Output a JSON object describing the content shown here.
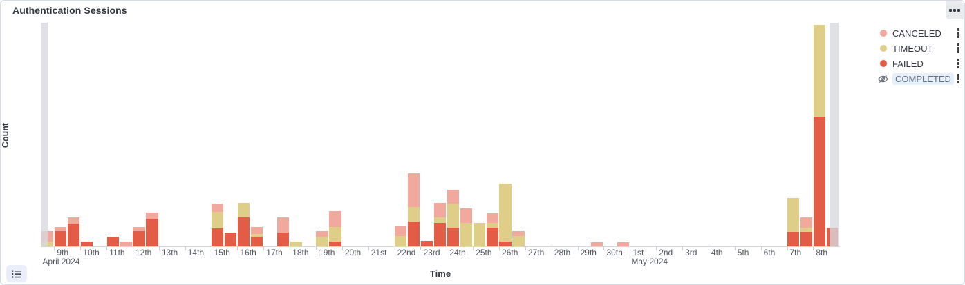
{
  "panel": {
    "title": "Authentication Sessions",
    "options_icon": "boxes-horizontal-icon",
    "legend_toggle_icon": "list-icon"
  },
  "colors": {
    "canceled": "#F0A99C",
    "timeout": "#DECE87",
    "failed": "#E25C46",
    "partial_band": "#E0E0E6",
    "panel_border": "#D3DAE6",
    "hidden_legend_bg": "#E6F0FA",
    "hidden_legend_text": "#647181"
  },
  "legend": {
    "items": [
      {
        "label": "CANCELED",
        "color": "#F0A99C",
        "hidden": false
      },
      {
        "label": "TIMEOUT",
        "color": "#DECE87",
        "hidden": false
      },
      {
        "label": "FAILED",
        "color": "#E25C46",
        "hidden": false
      },
      {
        "label": "COMPLETED",
        "color": null,
        "hidden": true
      }
    ]
  },
  "chart_data": {
    "type": "bar",
    "stacked": true,
    "title": "Authentication Sessions",
    "xlabel": "Time",
    "ylabel": "Count",
    "bucket_interval": "12h",
    "y_axis_note": "no numeric y ticks shown; values are estimated relative counts (pixel-proportional)",
    "series_order_bottom_to_top": [
      "FAILED",
      "TIMEOUT",
      "CANCELED"
    ],
    "hidden_series": [
      "COMPLETED"
    ],
    "x_ticks": [
      "9th",
      "10th",
      "11th",
      "12th",
      "13th",
      "14th",
      "15th",
      "16th",
      "17th",
      "18th",
      "19th",
      "20th",
      "21st",
      "22nd",
      "23rd",
      "24th",
      "25th",
      "26th",
      "27th",
      "28th",
      "29th",
      "30th",
      "1st",
      "2nd",
      "3rd",
      "4th",
      "5th",
      "6th",
      "7th",
      "8th"
    ],
    "month_labels": [
      {
        "tick_index": 0,
        "label": "April 2024"
      },
      {
        "tick_index": 22,
        "label": "May 2024"
      }
    ],
    "partial_buckets": [
      "left edge (Apr 8 PM, half covered)",
      "right edge (May 8 PM)"
    ],
    "bars": [
      {
        "index": 0,
        "time": "Apr 8 PM",
        "failed": 0,
        "timeout": 7,
        "canceled": 15
      },
      {
        "index": 1,
        "time": "Apr 9 AM",
        "failed": 22,
        "timeout": 0,
        "canceled": 6
      },
      {
        "index": 2,
        "time": "Apr 9 PM",
        "failed": 33,
        "timeout": 0,
        "canceled": 9
      },
      {
        "index": 3,
        "time": "Apr 10 AM",
        "failed": 7,
        "timeout": 0,
        "canceled": 0
      },
      {
        "index": 5,
        "time": "Apr 11 AM",
        "failed": 14,
        "timeout": 0,
        "canceled": 0
      },
      {
        "index": 6,
        "time": "Apr 11 PM",
        "failed": 0,
        "timeout": 0,
        "canceled": 7
      },
      {
        "index": 7,
        "time": "Apr 12 AM",
        "failed": 22,
        "timeout": 0,
        "canceled": 6
      },
      {
        "index": 8,
        "time": "Apr 12 PM",
        "failed": 40,
        "timeout": 0,
        "canceled": 9
      },
      {
        "index": 13,
        "time": "Apr 15 AM",
        "failed": 26,
        "timeout": 24,
        "canceled": 12
      },
      {
        "index": 14,
        "time": "Apr 15 PM",
        "failed": 20,
        "timeout": 0,
        "canceled": 0
      },
      {
        "index": 15,
        "time": "Apr 16 AM",
        "failed": 42,
        "timeout": 21,
        "canceled": 0
      },
      {
        "index": 16,
        "time": "Apr 16 PM",
        "failed": 14,
        "timeout": 4,
        "canceled": 10
      },
      {
        "index": 18,
        "time": "Apr 17 PM",
        "failed": 20,
        "timeout": 0,
        "canceled": 22
      },
      {
        "index": 19,
        "time": "Apr 18 AM",
        "failed": 0,
        "timeout": 7,
        "canceled": 0
      },
      {
        "index": 21,
        "time": "Apr 19 AM",
        "failed": 0,
        "timeout": 14,
        "canceled": 8
      },
      {
        "index": 22,
        "time": "Apr 19 PM",
        "failed": 7,
        "timeout": 21,
        "canceled": 23
      },
      {
        "index": 27,
        "time": "Apr 22 AM",
        "failed": 0,
        "timeout": 15,
        "canceled": 14
      },
      {
        "index": 28,
        "time": "Apr 22 PM",
        "failed": 36,
        "timeout": 21,
        "canceled": 49
      },
      {
        "index": 29,
        "time": "Apr 23 AM",
        "failed": 8,
        "timeout": 0,
        "canceled": 0
      },
      {
        "index": 30,
        "time": "Apr 23 PM",
        "failed": 34,
        "timeout": 8,
        "canceled": 21
      },
      {
        "index": 31,
        "time": "Apr 24 AM",
        "failed": 27,
        "timeout": 35,
        "canceled": 20
      },
      {
        "index": 32,
        "time": "Apr 24 PM",
        "failed": 0,
        "timeout": 34,
        "canceled": 21
      },
      {
        "index": 33,
        "time": "Apr 25 AM",
        "failed": 0,
        "timeout": 34,
        "canceled": 0
      },
      {
        "index": 34,
        "time": "Apr 25 PM",
        "failed": 27,
        "timeout": 7,
        "canceled": 14
      },
      {
        "index": 35,
        "time": "Apr 26 AM",
        "failed": 7,
        "timeout": 84,
        "canceled": 0
      },
      {
        "index": 36,
        "time": "Apr 26 PM",
        "failed": 0,
        "timeout": 15,
        "canceled": 7
      },
      {
        "index": 42,
        "time": "Apr 29 PM",
        "failed": 0,
        "timeout": 0,
        "canceled": 6
      },
      {
        "index": 44,
        "time": "Apr 30 PM",
        "failed": 0,
        "timeout": 0,
        "canceled": 6
      },
      {
        "index": 57,
        "time": "May 7 AM",
        "failed": 21,
        "timeout": 49,
        "canceled": 0
      },
      {
        "index": 58,
        "time": "May 7 PM",
        "failed": 21,
        "timeout": 6,
        "canceled": 15
      },
      {
        "index": 59,
        "time": "May 8 AM",
        "failed": 188,
        "timeout": 133,
        "canceled": 0
      },
      {
        "index": 60,
        "time": "May 8 PM",
        "failed": 27,
        "timeout": 0,
        "canceled": 0
      }
    ]
  }
}
